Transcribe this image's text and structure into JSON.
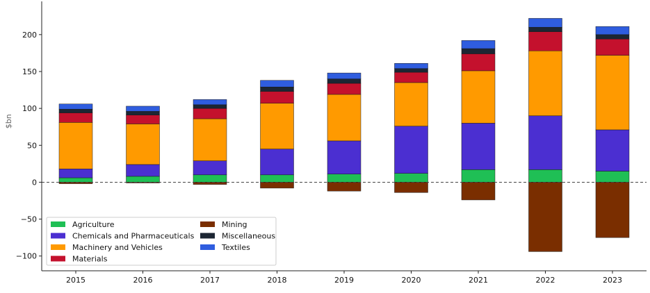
{
  "chart_data": {
    "type": "bar",
    "stacked": true,
    "title": "",
    "xlabel": "",
    "ylabel": "$bn",
    "ylim": [
      -120,
      245
    ],
    "yticks": [
      -100,
      -50,
      0,
      50,
      100,
      150,
      200
    ],
    "ytick_labels": [
      "−100",
      "−50",
      "0",
      "50",
      "100",
      "150",
      "200"
    ],
    "grid": false,
    "zero_line": "dashed",
    "legend_position": "bottom-left",
    "categories": [
      "2015",
      "2016",
      "2017",
      "2018",
      "2019",
      "2020",
      "2021",
      "2022",
      "2023"
    ],
    "series": [
      {
        "name": "Agriculture",
        "color": "#1fbf55",
        "values": [
          6,
          8,
          10,
          10,
          11,
          12,
          17,
          17,
          15
        ]
      },
      {
        "name": "Chemicals and Pharmaceuticals",
        "color": "#4b2fd1",
        "values": [
          12,
          16,
          19,
          35,
          45,
          64,
          63,
          73,
          56
        ]
      },
      {
        "name": "Machinery and Vehicles",
        "color": "#ff9a00",
        "values": [
          63,
          55,
          57,
          62,
          63,
          59,
          71,
          88,
          101
        ]
      },
      {
        "name": "Materials",
        "color": "#c4112d",
        "values": [
          13,
          12,
          14,
          16,
          15,
          14,
          23,
          26,
          22
        ]
      },
      {
        "name": "Mining",
        "color": "#7a2e00",
        "values": [
          -2,
          -1,
          -3,
          -8,
          -12,
          -14,
          -24,
          -94,
          -75
        ]
      },
      {
        "name": "Miscellaneous",
        "color": "#1c2633",
        "values": [
          5,
          5,
          5,
          6,
          6,
          5,
          7,
          6,
          6
        ]
      },
      {
        "name": "Textiles",
        "color": "#2f5ddf",
        "values": [
          7,
          7,
          7,
          9,
          8,
          7,
          11,
          12,
          11
        ]
      }
    ]
  }
}
